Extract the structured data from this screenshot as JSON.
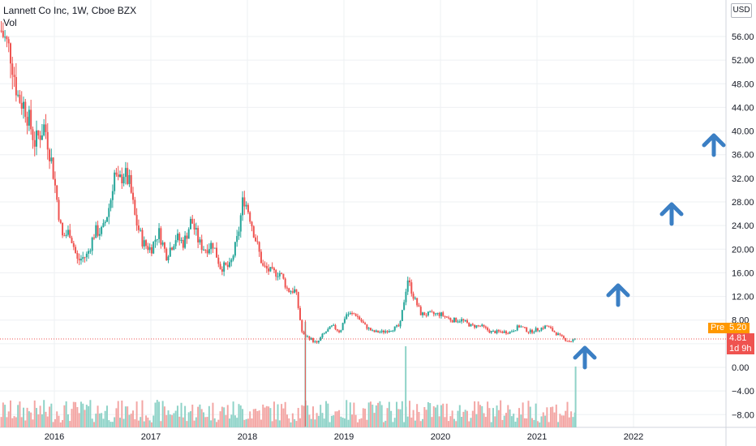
{
  "header": {
    "title": "Lannett Co Inc, 1W, Cboe BZX",
    "volume_label": "Vol"
  },
  "currency_button": "USD",
  "price_labels": {
    "pre_tag": "Pre",
    "pre_value": "5.20",
    "last_value": "4.81",
    "countdown": "1d 9h"
  },
  "colors": {
    "up": "#26a69a",
    "down": "#ef5350",
    "arrow": "#3b7fc4",
    "pre": "#ff9800",
    "last": "#ef5350"
  },
  "icons": [
    "up-arrow-icon"
  ],
  "chart_data": {
    "type": "candlestick",
    "x_ticks": [
      "2016",
      "2017",
      "2018",
      "2019",
      "2020",
      "2021",
      "2022"
    ],
    "y_ticks": [
      "56.00",
      "52.00",
      "48.00",
      "44.00",
      "40.00",
      "36.00",
      "32.00",
      "28.00",
      "24.00",
      "20.00",
      "16.00",
      "12.00",
      "8.00",
      "4.00",
      "0.00",
      "−4.00",
      "−8.00"
    ],
    "ylim": [
      -10,
      59
    ],
    "grid": true,
    "weekly_close": [
      [
        2015.45,
        57
      ],
      [
        2015.55,
        53
      ],
      [
        2015.62,
        46
      ],
      [
        2015.7,
        44
      ],
      [
        2015.8,
        38
      ],
      [
        2015.9,
        41
      ],
      [
        2015.98,
        34
      ],
      [
        2016.08,
        22
      ],
      [
        2016.16,
        23
      ],
      [
        2016.24,
        18
      ],
      [
        2016.34,
        19
      ],
      [
        2016.42,
        23
      ],
      [
        2016.5,
        23
      ],
      [
        2016.58,
        28
      ],
      [
        2016.62,
        33
      ],
      [
        2016.66,
        31
      ],
      [
        2016.72,
        33
      ],
      [
        2016.78,
        31
      ],
      [
        2016.84,
        25
      ],
      [
        2016.92,
        21
      ],
      [
        2017.0,
        20
      ],
      [
        2017.08,
        23
      ],
      [
        2017.16,
        19
      ],
      [
        2017.26,
        22
      ],
      [
        2017.34,
        21
      ],
      [
        2017.42,
        25
      ],
      [
        2017.5,
        21
      ],
      [
        2017.56,
        20
      ],
      [
        2017.64,
        21
      ],
      [
        2017.72,
        17
      ],
      [
        2017.82,
        17
      ],
      [
        2017.9,
        22
      ],
      [
        2017.96,
        29
      ],
      [
        2018.02,
        26
      ],
      [
        2018.08,
        22
      ],
      [
        2018.16,
        17
      ],
      [
        2018.26,
        16
      ],
      [
        2018.34,
        16
      ],
      [
        2018.42,
        13
      ],
      [
        2018.5,
        13
      ],
      [
        2018.57,
        5.5
      ],
      [
        2018.64,
        5
      ],
      [
        2018.72,
        4
      ],
      [
        2018.78,
        5.5
      ],
      [
        2018.88,
        7
      ],
      [
        2018.96,
        6
      ],
      [
        2019.02,
        9
      ],
      [
        2019.12,
        9
      ],
      [
        2019.22,
        7
      ],
      [
        2019.3,
        6
      ],
      [
        2019.4,
        6
      ],
      [
        2019.5,
        6.5
      ],
      [
        2019.58,
        7
      ],
      [
        2019.66,
        15
      ],
      [
        2019.72,
        12
      ],
      [
        2019.8,
        9
      ],
      [
        2019.9,
        9
      ],
      [
        2020.0,
        9
      ],
      [
        2020.12,
        8
      ],
      [
        2020.22,
        8
      ],
      [
        2020.32,
        7
      ],
      [
        2020.42,
        7
      ],
      [
        2020.52,
        6
      ],
      [
        2020.62,
        6
      ],
      [
        2020.72,
        6
      ],
      [
        2020.82,
        7
      ],
      [
        2020.92,
        6
      ],
      [
        2021.02,
        6.5
      ],
      [
        2021.1,
        7
      ],
      [
        2021.18,
        6
      ],
      [
        2021.26,
        5
      ],
      [
        2021.34,
        4.4
      ],
      [
        2021.41,
        4.81
      ]
    ]
  }
}
